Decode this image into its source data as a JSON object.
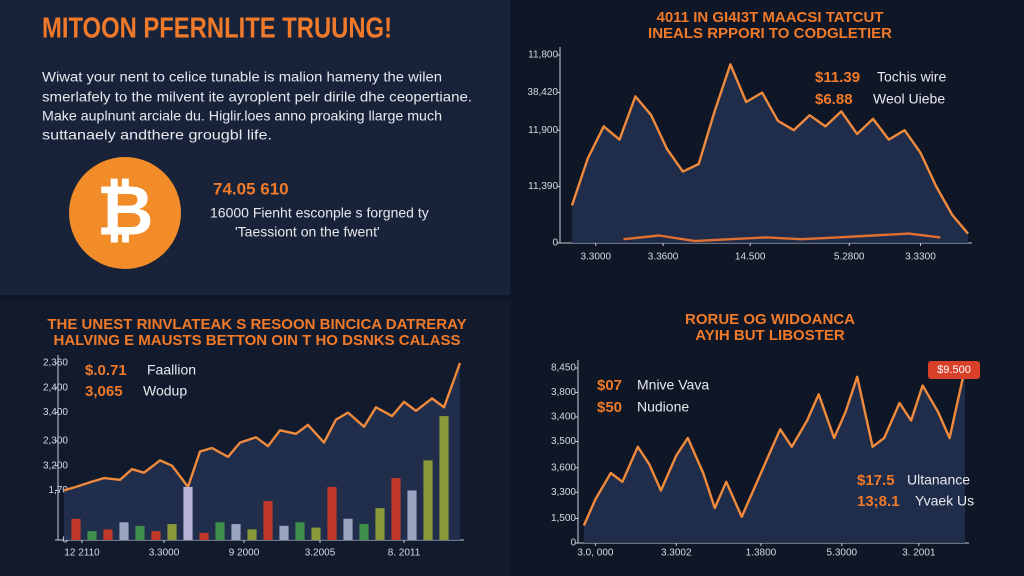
{
  "panel": {
    "title": "MITOON PFERNLITE TRUUNG!",
    "text": [
      "Wiwat your nent to celice tunable is malion hameny the wilen",
      "smerlafely to the milvent ite ayroplent pelr dirile dhe ceopertiane.",
      "Make auplnunt arciale du. Higlir.loes anno proaking llarge much",
      "suttanaely andthere grougbl life."
    ],
    "symbol": "₿",
    "price": "74.05 610",
    "caption": [
      "16000 Fienht esconple s forgned ty",
      "'Taessiont on the fwent'"
    ]
  },
  "chart_data": [
    {
      "type": "area",
      "title": "4011 IN GI4I3T MAACSI TATCUT",
      "subtitle": "INEALS RPPORI TO CODGLETIER",
      "xlim": [
        0,
        100
      ],
      "xticks": [
        {
          "value": 6,
          "label": "3.3000"
        },
        {
          "value": 23,
          "label": "3.3600"
        },
        {
          "value": 45,
          "label": "14.500"
        },
        {
          "value": 70,
          "label": "5.2800"
        },
        {
          "value": 88,
          "label": "3.3300"
        }
      ],
      "ylim": [
        0,
        100
      ],
      "yticks": [
        {
          "value": 100,
          "label": "11,800"
        },
        {
          "value": 80,
          "label": "38,420"
        },
        {
          "value": 60,
          "label": "11,900"
        },
        {
          "value": 30,
          "label": "11,390"
        },
        0
      ],
      "series": [
        {
          "color": "#f08a3c",
          "x": [
            0,
            4,
            8,
            12,
            16,
            20,
            24,
            28,
            32,
            36,
            40,
            44,
            48,
            52,
            56,
            60,
            64,
            68,
            72,
            76,
            80,
            84,
            88,
            92,
            96,
            100
          ],
          "values": [
            20,
            45,
            62,
            55,
            78,
            68,
            50,
            38,
            42,
            70,
            95,
            75,
            80,
            65,
            60,
            68,
            62,
            70,
            58,
            66,
            55,
            60,
            48,
            30,
            15,
            5
          ]
        },
        {
          "color": "#e07030",
          "x": [
            13,
            22,
            31,
            40,
            49,
            58,
            67,
            76,
            85,
            93
          ],
          "values": [
            2,
            4,
            1,
            2,
            3,
            2,
            3,
            4,
            5,
            3
          ]
        }
      ],
      "annotations": [
        {
          "value": "$11.39",
          "label": "Tochis wire"
        },
        {
          "value": "$6.88",
          "label": "Weol Uiebe"
        }
      ]
    },
    {
      "type": "bar-line",
      "title": "THE UNEST RINVLATEAK S RESOON BINCICA DATRERAY",
      "subtitle": "HALVING E MAUSTS BETTON OIN T HO DSNKS CALASS",
      "xlim": [
        0,
        100
      ],
      "xticks": [
        {
          "value": 5.5,
          "label": "12 2110"
        },
        {
          "value": 26,
          "label": "3.3000"
        },
        {
          "value": 46,
          "label": "9 2000"
        },
        {
          "value": 65,
          "label": "3.2005"
        },
        {
          "value": 86,
          "label": "8. 2011"
        }
      ],
      "ylim": [
        0,
        100
      ],
      "yticks": [
        {
          "value": 100,
          "label": "2,360"
        },
        {
          "value": 86,
          "label": "2,400"
        },
        {
          "value": 72,
          "label": "3,400"
        },
        {
          "value": 56,
          "label": "2,300"
        },
        {
          "value": 42,
          "label": "3,200"
        },
        {
          "value": 28,
          "label": "1,70"
        },
        0
      ],
      "bars": {
        "x": [
          4,
          8,
          12,
          16,
          20,
          24,
          28,
          32,
          36,
          40,
          44,
          48,
          52,
          56,
          60,
          64,
          68,
          72,
          76,
          80,
          84,
          88,
          92,
          96
        ],
        "values": [
          12,
          5,
          6,
          10,
          8,
          5,
          9,
          30,
          4,
          10,
          9,
          6,
          22,
          8,
          10,
          7,
          30,
          12,
          9,
          18,
          35,
          28,
          45,
          70
        ],
        "colors": [
          "#c0392b",
          "#3f8f4a",
          "#c0392b",
          "#9aa3c0",
          "#3f8f4a",
          "#c0392b",
          "#8a9a3a",
          "#b8b4d8",
          "#c0392b",
          "#3f8f4a",
          "#9aa3c0",
          "#8a9a3a",
          "#c0392b",
          "#9aa3c0",
          "#3f8f4a",
          "#8a9a3a",
          "#c0392b",
          "#9aa3c0",
          "#3f8f4a",
          "#8a9a3a",
          "#c0392b",
          "#9aa3c0",
          "#8a9a3a",
          "#8a9a3a"
        ]
      },
      "series": [
        {
          "color": "#f08a3c",
          "x": [
            1,
            4,
            8,
            11,
            15,
            18,
            21,
            25,
            28,
            32,
            35,
            38,
            42,
            45,
            49,
            52,
            55,
            59,
            62,
            66,
            69,
            72,
            76,
            79,
            83,
            86,
            89,
            93,
            96,
            100
          ],
          "values": [
            28,
            30,
            33,
            35,
            34,
            40,
            38,
            45,
            42,
            30,
            50,
            52,
            47,
            55,
            58,
            53,
            62,
            60,
            65,
            55,
            68,
            72,
            64,
            75,
            70,
            78,
            73,
            80,
            75,
            100
          ]
        }
      ],
      "annotations": [
        {
          "value": "$.0.71",
          "label": "Faallion"
        },
        {
          "value": "3,065",
          "label": "Wodup"
        }
      ]
    },
    {
      "type": "area",
      "title": "RORUE OG WIDOANCA",
      "subtitle": "AYIH BUT LIBOSTER",
      "badge": "$9.500",
      "xlim": [
        0,
        100
      ],
      "xticks": [
        {
          "value": 4,
          "label": "3.0, 000"
        },
        {
          "value": 25,
          "label": "3.3002"
        },
        {
          "value": 47,
          "label": "1.3800"
        },
        {
          "value": 68,
          "label": "5.3000"
        },
        {
          "value": 88,
          "label": "3. 2001"
        }
      ],
      "ylim": [
        0,
        100
      ],
      "yticks": [
        {
          "value": 100,
          "label": "8,450"
        },
        {
          "value": 86,
          "label": "3,800"
        },
        {
          "value": 72,
          "label": "3,400"
        },
        {
          "value": 58,
          "label": "3,500"
        },
        {
          "value": 43,
          "label": "3,600"
        },
        {
          "value": 29,
          "label": "3,300"
        },
        {
          "value": 14,
          "label": "1,500"
        },
        0
      ],
      "series": [
        {
          "color": "#f08a3c",
          "x": [
            1,
            4,
            8,
            11,
            15,
            18,
            21,
            25,
            28,
            32,
            35,
            38,
            42,
            45,
            49,
            52,
            55,
            59,
            62,
            66,
            69,
            72,
            76,
            79,
            83,
            86,
            89,
            93,
            96,
            100
          ],
          "values": [
            10,
            25,
            40,
            35,
            55,
            45,
            30,
            50,
            60,
            40,
            20,
            35,
            15,
            30,
            50,
            65,
            55,
            70,
            85,
            60,
            75,
            95,
            55,
            60,
            80,
            70,
            90,
            75,
            60,
            100
          ]
        }
      ],
      "annotations": [
        {
          "value": "$07",
          "label": "Mnive Vava"
        },
        {
          "value": "$50",
          "label": "Nudione"
        },
        {
          "value": "$17.5",
          "label": "Ultanance"
        },
        {
          "value": "13;8.1",
          "label": "Yvaek Us"
        }
      ]
    }
  ]
}
